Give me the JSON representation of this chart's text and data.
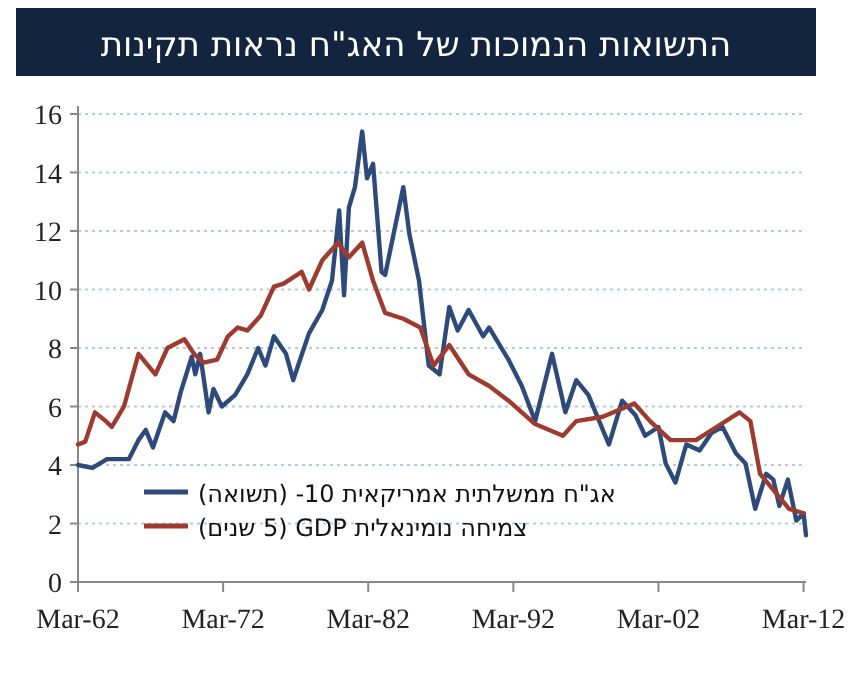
{
  "chart_data": {
    "type": "line",
    "title": "התשואות הנמוכות של האג\"ח נראות תקינות",
    "xlim": [
      "1962-03",
      "2012-05"
    ],
    "xticks": [
      {
        "value": "1962-03",
        "label": "Mar-62"
      },
      {
        "value": "1972-03",
        "label": "Mar-72"
      },
      {
        "value": "1982-03",
        "label": "Mar-82"
      },
      {
        "value": "1992-03",
        "label": "Mar-92"
      },
      {
        "value": "2002-03",
        "label": "Mar-02"
      },
      {
        "value": "2012-03",
        "label": "Mar-12"
      }
    ],
    "ylim": [
      0,
      16
    ],
    "yticks": [
      0,
      2,
      4,
      6,
      8,
      10,
      12,
      14,
      16
    ],
    "grid": "y",
    "legend": "bottom left",
    "series": [
      {
        "name": "אג\"ח ממשלתית אמריקאית 10- (תשואה)",
        "color": "#2e4a7a",
        "x": [
          "1962-03",
          "1963-03",
          "1964-03",
          "1965-09",
          "1966-05",
          "1966-11",
          "1967-05",
          "1968-03",
          "1968-10",
          "1969-04",
          "1970-01",
          "1970-04",
          "1970-08",
          "1971-03",
          "1971-07",
          "1972-02",
          "1973-01",
          "1973-11",
          "1974-08",
          "1975-02",
          "1975-09",
          "1976-07",
          "1977-01",
          "1977-05",
          "1978-02",
          "1979-01",
          "1979-09",
          "1980-03",
          "1980-07",
          "1980-11",
          "1981-04",
          "1981-10",
          "1982-02",
          "1982-07",
          "1983-02",
          "1983-05",
          "1984-02",
          "1984-08",
          "1985-01",
          "1985-09",
          "1986-05",
          "1987-02",
          "1987-10",
          "1988-05",
          "1989-02",
          "1990-02",
          "1990-07",
          "1991-11",
          "1992-10",
          "1993-09",
          "1994-11",
          "1995-10",
          "1996-07",
          "1997-05",
          "1998-10",
          "1999-09",
          "2000-08",
          "2001-04",
          "2002-03",
          "2002-09",
          "2003-05",
          "2004-02",
          "2005-01",
          "2005-11",
          "2006-08",
          "2007-07",
          "2008-03",
          "2008-11",
          "2009-08",
          "2010-02",
          "2010-07",
          "2011-02",
          "2011-09",
          "2012-03",
          "2012-05"
        ],
        "values": [
          4.0,
          3.9,
          4.2,
          4.2,
          4.85,
          5.2,
          4.6,
          5.8,
          5.5,
          6.5,
          7.7,
          7.1,
          7.8,
          5.8,
          6.6,
          6.0,
          6.4,
          7.1,
          8.0,
          7.4,
          8.4,
          7.8,
          6.9,
          7.4,
          8.5,
          9.3,
          10.3,
          12.7,
          9.8,
          12.8,
          13.5,
          15.4,
          13.8,
          14.3,
          10.6,
          10.5,
          12.3,
          13.5,
          11.9,
          10.3,
          7.4,
          7.1,
          9.4,
          8.6,
          9.3,
          8.4,
          8.7,
          7.6,
          6.7,
          5.5,
          7.8,
          5.8,
          6.9,
          6.4,
          4.7,
          6.2,
          5.7,
          5.0,
          5.3,
          4.05,
          3.4,
          4.7,
          4.5,
          5.1,
          5.3,
          4.4,
          4.05,
          2.5,
          3.7,
          3.5,
          2.6,
          3.5,
          2.1,
          2.35,
          1.6
        ]
      },
      {
        "name": "צמיחה נומינאלית GDP (5 שנים)",
        "color": "#9e3b2f",
        "x": [
          "1962-03",
          "1962-09",
          "1963-05",
          "1964-02",
          "1964-07",
          "1965-05",
          "1966-05",
          "1967-07",
          "1968-05",
          "1969-07",
          "1970-03",
          "1970-11",
          "1971-10",
          "1972-07",
          "1973-03",
          "1973-11",
          "1974-10",
          "1975-09",
          "1976-05",
          "1977-08",
          "1978-02",
          "1979-01",
          "1980-02",
          "1980-11",
          "1981-10",
          "1982-07",
          "1983-05",
          "1984-08",
          "1985-10",
          "1986-09",
          "1987-10",
          "1989-02",
          "1990-07",
          "1991-11",
          "1993-09",
          "1995-08",
          "1996-07",
          "1998-05",
          "2000-07",
          "2001-08",
          "2003-01",
          "2004-10",
          "2006-03",
          "2007-10",
          "2008-07",
          "2009-03",
          "2010-02",
          "2011-03",
          "2012-03"
        ],
        "values": [
          4.7,
          4.8,
          5.8,
          5.5,
          5.3,
          6.0,
          7.8,
          7.1,
          8.0,
          8.3,
          7.8,
          7.5,
          7.6,
          8.4,
          8.7,
          8.6,
          9.1,
          10.1,
          10.2,
          10.6,
          10.0,
          11.0,
          11.6,
          11.1,
          11.6,
          10.3,
          9.2,
          9.0,
          8.7,
          7.4,
          8.1,
          7.1,
          6.7,
          6.2,
          5.4,
          5.0,
          5.5,
          5.65,
          6.1,
          5.5,
          4.85,
          4.85,
          5.3,
          5.8,
          5.5,
          3.7,
          3.15,
          2.5,
          2.35
        ]
      }
    ]
  }
}
